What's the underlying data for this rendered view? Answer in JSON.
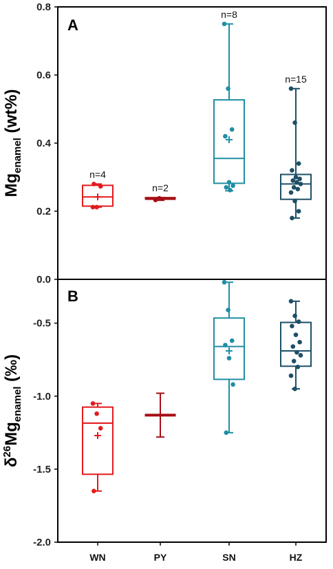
{
  "chart_data": [
    {
      "type": "box",
      "panel": "A",
      "ylabel": {
        "main": "Mg",
        "sub": "enamel",
        "unit": " (wt%)"
      },
      "ylim": [
        0.0,
        0.8
      ],
      "yticks": [
        "0.0",
        "0.2",
        "0.4",
        "0.6",
        "0.8"
      ],
      "categories": [
        "WN",
        "PY",
        "SN",
        "HZ"
      ],
      "boxes": [
        {
          "category": "WN",
          "color": "#e31a1c",
          "min": 0.212,
          "q1": 0.215,
          "median": 0.242,
          "q3": 0.276,
          "max": 0.28,
          "mean": 0.242,
          "n_label": "n=4",
          "points": [
            0.212,
            0.212,
            0.273,
            0.28
          ]
        },
        {
          "category": "PY",
          "color": "#a50f15",
          "min": 0.232,
          "q1": 0.233,
          "median": 0.236,
          "q3": 0.238,
          "max": 0.24,
          "mean": null,
          "n_label": "n=2",
          "points": [
            0.233,
            0.238
          ]
        },
        {
          "category": "SN",
          "color": "#1f8ea3",
          "min": 0.26,
          "q1": 0.282,
          "median": 0.355,
          "q3": 0.527,
          "max": 0.75,
          "mean": 0.41,
          "n_label": "n=8",
          "points": [
            0.75,
            0.56,
            0.44,
            0.42,
            0.285,
            0.275,
            0.27,
            0.262
          ]
        },
        {
          "category": "HZ",
          "color": "#1d4f66",
          "min": 0.18,
          "q1": 0.235,
          "median": 0.28,
          "q3": 0.308,
          "max": 0.56,
          "mean": null,
          "n_label": "n=15",
          "points": [
            0.56,
            0.46,
            0.34,
            0.32,
            0.3,
            0.295,
            0.29,
            0.285,
            0.28,
            0.27,
            0.265,
            0.255,
            0.23,
            0.2,
            0.18
          ]
        }
      ]
    },
    {
      "type": "box",
      "panel": "B",
      "ylabel": {
        "main": "δ",
        "sup": "26",
        "main2": "Mg",
        "sub": "enamel",
        "unit": " (‰)"
      },
      "ylim": [
        -2.0,
        -0.2
      ],
      "yticks": [
        "-2.0",
        "-1.5",
        "-1.0",
        "-0.5"
      ],
      "categories": [
        "WN",
        "PY",
        "SN",
        "HZ"
      ],
      "boxes": [
        {
          "category": "WN",
          "color": "#e31a1c",
          "min": -1.65,
          "q1": -1.535,
          "median": -1.185,
          "q3": -1.075,
          "max": -1.05,
          "mean": -1.27,
          "points": [
            -1.05,
            -1.12,
            -1.22,
            -1.65
          ]
        },
        {
          "category": "PY",
          "color": "#a50f15",
          "min": -1.28,
          "q1": -1.13,
          "median": -1.13,
          "q3": -1.13,
          "max": -0.98,
          "mean": null,
          "points": []
        },
        {
          "category": "SN",
          "color": "#1f8ea3",
          "min": -1.25,
          "q1": -0.885,
          "median": -0.66,
          "q3": -0.465,
          "max": -0.22,
          "mean": -0.69,
          "points": [
            -0.22,
            -0.41,
            -0.62,
            -0.65,
            -0.74,
            -0.92,
            -1.25
          ]
        },
        {
          "category": "HZ",
          "color": "#1d4f66",
          "min": -0.95,
          "q1": -0.795,
          "median": -0.69,
          "q3": -0.495,
          "max": -0.35,
          "mean": null,
          "points": [
            -0.35,
            -0.45,
            -0.49,
            -0.52,
            -0.58,
            -0.63,
            -0.66,
            -0.7,
            -0.72,
            -0.76,
            -0.8,
            -0.86,
            -0.95
          ]
        }
      ]
    }
  ]
}
